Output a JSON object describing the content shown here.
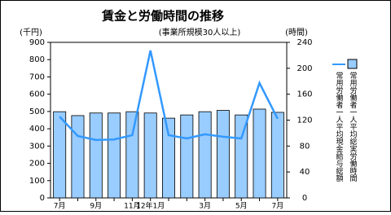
{
  "chart_data": {
    "type": "bar",
    "title": "賃金と労働時間の推移",
    "subtitle": "(事業所規模30人以上)",
    "y_label": "(千円)",
    "y2_label": "(時間)",
    "categories": [
      "7月",
      null,
      "9月",
      null,
      "11月",
      "12年1月",
      null,
      null,
      "3月",
      null,
      "5月",
      null,
      "7月"
    ],
    "series": [
      {
        "name": "常用労働者一人平均総実労働時間",
        "type": "bar",
        "axis": "y2",
        "color": "#99ccff",
        "values": [
          133,
          127,
          131,
          131,
          133,
          131,
          123,
          128,
          133,
          135,
          128,
          137,
          132
        ]
      },
      {
        "name": "常用労働者一人平均現金給与総額",
        "type": "line",
        "color": "#3399ff",
        "values": [
          470,
          358,
          335,
          338,
          363,
          853,
          363,
          344,
          368,
          354,
          344,
          665,
          458
        ]
      }
    ],
    "ylim": [
      0,
      900
    ],
    "yticks": [
      0,
      100,
      200,
      300,
      400,
      500,
      600,
      700,
      800,
      900
    ],
    "y2lim": [
      0,
      240
    ],
    "y2ticks": [
      0,
      40,
      80,
      120,
      160,
      200,
      240
    ]
  }
}
